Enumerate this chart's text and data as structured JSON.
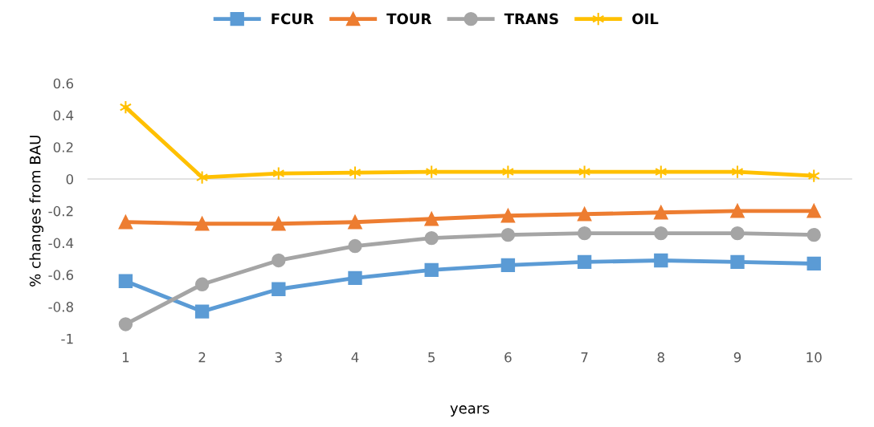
{
  "chart_data": {
    "type": "line",
    "xlabel": "years",
    "ylabel": "% changes from BAU",
    "categories": [
      "1",
      "2",
      "3",
      "4",
      "5",
      "6",
      "7",
      "8",
      "9",
      "10"
    ],
    "series": [
      {
        "name": "FCUR",
        "color": "#5b9bd5",
        "marker": "square",
        "values": [
          -0.64,
          -0.83,
          -0.69,
          -0.62,
          -0.57,
          -0.54,
          -0.52,
          -0.51,
          -0.52,
          -0.53
        ]
      },
      {
        "name": "TOUR",
        "color": "#ed7d31",
        "marker": "triangle",
        "values": [
          -0.27,
          -0.28,
          -0.28,
          -0.27,
          -0.25,
          -0.23,
          -0.22,
          -0.21,
          -0.2,
          -0.2
        ]
      },
      {
        "name": "TRANS",
        "color": "#a5a5a5",
        "marker": "circle",
        "values": [
          -0.91,
          -0.66,
          -0.51,
          -0.42,
          -0.37,
          -0.35,
          -0.34,
          -0.34,
          -0.34,
          -0.35
        ]
      },
      {
        "name": "OIL",
        "color": "#ffc000",
        "marker": "cross",
        "values": [
          0.45,
          0.01,
          0.035,
          0.04,
          0.045,
          0.045,
          0.045,
          0.045,
          0.045,
          0.02
        ]
      }
    ],
    "ylim": [
      -1,
      0.6
    ],
    "yticks": [
      -1,
      -0.8,
      -0.6,
      -0.4,
      -0.2,
      0,
      0.2,
      0.4,
      0.6
    ],
    "ref_lines": [
      {
        "axis": "y",
        "value": 0,
        "color": "#d9d9d9"
      }
    ],
    "grid": false,
    "legend": "top"
  }
}
